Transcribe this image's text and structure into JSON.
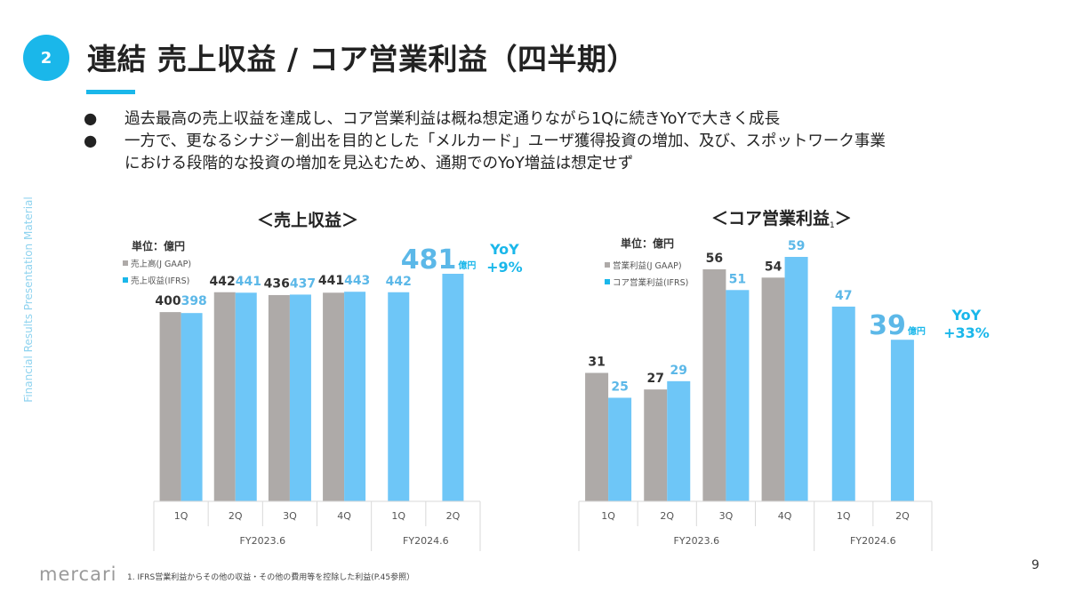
{
  "header": {
    "section_number": "2",
    "title": "連結 売上収益 / コア営業利益（四半期）"
  },
  "side_label": "Financial Results Presentation Material",
  "bullets": [
    {
      "bullet": "●",
      "lines": [
        "過去最高の売上収益を達成し、コア営業利益は概ね想定通りながら1Qに続きYoYで大きく成長"
      ]
    },
    {
      "bullet": "●",
      "lines": [
        "一方で、更なるシナジー創出を目的とした「メルカード」ユーザ獲得投資の増加、及び、スポットワーク事業",
        "における段階的な投資の増加を見込むため、通期でのYoY増益は想定せず"
      ]
    }
  ],
  "colors": {
    "accent": "#1ab7ea",
    "jgaap_bar": "#aeaaa8",
    "ifrs_bar": "#6ec6f7",
    "ifrs_label": "#5cb8e8",
    "jgaap_label": "#333333",
    "axis_line": "#d9d9d9"
  },
  "chart_data": [
    {
      "type": "bar",
      "title": "＜売上収益＞",
      "unit_label": "単位：億円",
      "legend_position": "top-left",
      "categories": [
        "1Q",
        "2Q",
        "3Q",
        "4Q",
        "1Q",
        "2Q"
      ],
      "category_groups": [
        {
          "label": "FY2023.6",
          "span": 4
        },
        {
          "label": "FY2024.6",
          "span": 2
        }
      ],
      "series": [
        {
          "name": "売上高(J GAAP)",
          "values": [
            400,
            442,
            436,
            441,
            null,
            null
          ]
        },
        {
          "name": "売上収益(IFRS)",
          "values": [
            398,
            441,
            437,
            443,
            442,
            481
          ]
        }
      ],
      "ylim": [
        0,
        481
      ],
      "grid": false,
      "highlight": {
        "value": "481",
        "unit": "億円",
        "yoy_label": "YoY",
        "yoy_value": "+9%"
      }
    },
    {
      "type": "bar",
      "title": "＜コア営業利益",
      "title_superscript": "1",
      "title_close": "＞",
      "unit_label": "単位：億円",
      "legend_position": "top-left",
      "categories": [
        "1Q",
        "2Q",
        "3Q",
        "4Q",
        "1Q",
        "2Q"
      ],
      "category_groups": [
        {
          "label": "FY2023.6",
          "span": 4
        },
        {
          "label": "FY2024.6",
          "span": 2
        }
      ],
      "series": [
        {
          "name": "営業利益(J GAAP)",
          "values": [
            31,
            27,
            56,
            54,
            null,
            null
          ]
        },
        {
          "name": "コア営業利益(IFRS)",
          "values": [
            25,
            29,
            51,
            59,
            47,
            39
          ]
        }
      ],
      "ylim": [
        0,
        59
      ],
      "grid": false,
      "highlight": {
        "value": "39",
        "unit": "億円",
        "yoy_label": "YoY",
        "yoy_value": "+33%"
      }
    }
  ],
  "footer": {
    "logo": "mercari",
    "footnote": "1. IFRS営業利益からその他の収益・その他の費用等を控除した利益(P.45参照）",
    "page_number": "9"
  }
}
